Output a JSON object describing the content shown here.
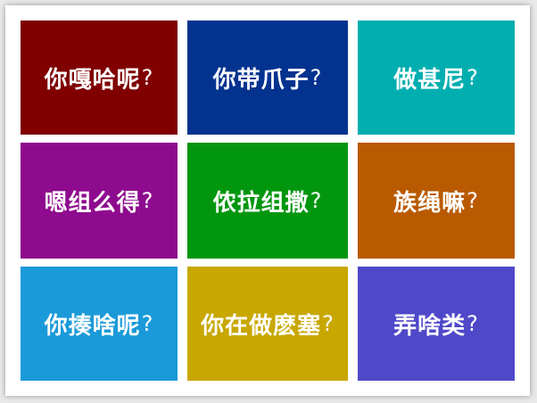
{
  "tiles": [
    {
      "text": "你嘎哈呢",
      "mark": "?",
      "color": "#800000"
    },
    {
      "text": "你带爪子",
      "mark": "?",
      "color": "#04338f"
    },
    {
      "text": "做甚尼",
      "mark": "?",
      "color": "#00aeb0"
    },
    {
      "text": "嗯组么得",
      "mark": "?",
      "color": "#8e0a8e"
    },
    {
      "text": "侬拉组撒",
      "mark": "?",
      "color": "#02960f"
    },
    {
      "text": "族绳嘛",
      "mark": "?",
      "color": "#b95a00"
    },
    {
      "text": "你揍啥呢",
      "mark": "?",
      "color": "#1b9ad9"
    },
    {
      "text": "你在做麽塞",
      "mark": "?",
      "color": "#c8a700"
    },
    {
      "text": "弄啥类",
      "mark": "?",
      "color": "#4f48c9"
    }
  ]
}
